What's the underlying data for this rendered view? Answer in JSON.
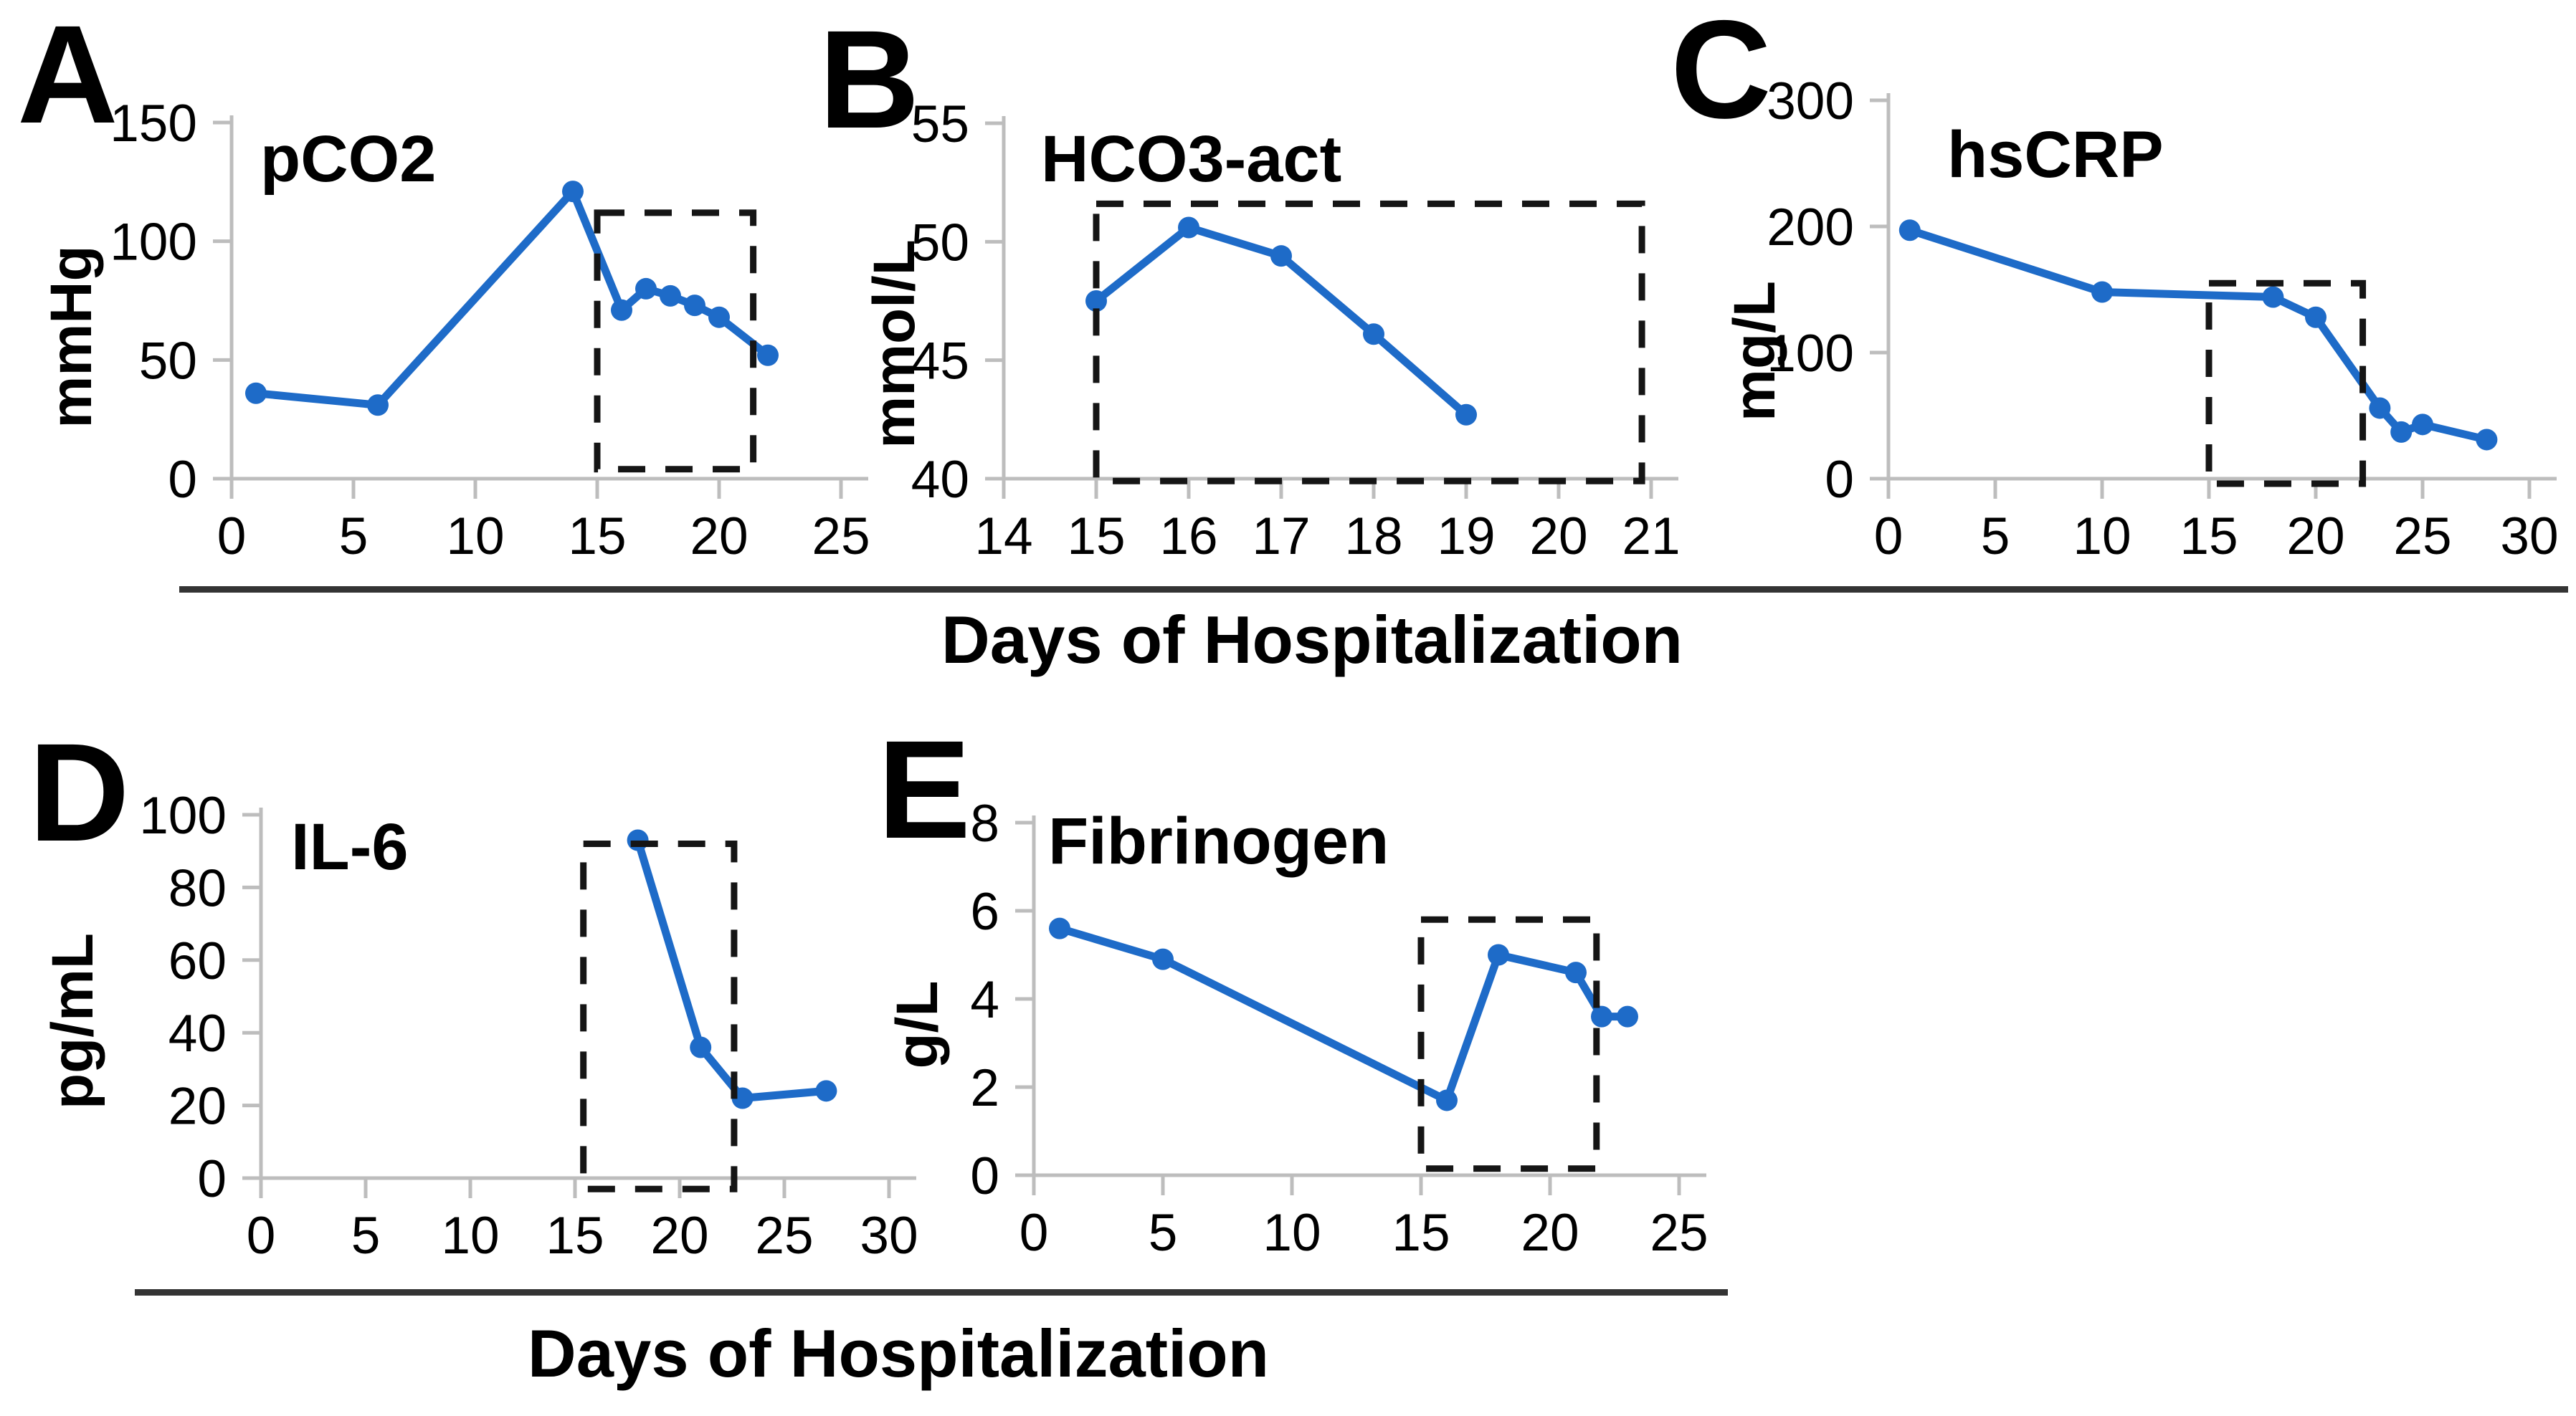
{
  "figure": {
    "caption_top": "Days of Hospitalization",
    "caption_bottom": "Days of Hospitalization"
  },
  "chart_data": [
    {
      "type": "line",
      "panel": "A",
      "title": "pCO2",
      "ylabel": "mmHg",
      "xlabel": "Days of Hospitalization",
      "xlim": [
        0,
        25
      ],
      "ylim": [
        0,
        150
      ],
      "x_ticks": [
        0,
        5,
        10,
        15,
        20,
        25
      ],
      "y_ticks": [
        0,
        50,
        100,
        150
      ],
      "x": [
        1,
        6,
        14,
        16,
        17,
        18,
        19,
        20,
        22
      ],
      "y": [
        36,
        31,
        121,
        71,
        80,
        77,
        73,
        68,
        52
      ],
      "dash_box": {
        "x0": 15,
        "x1": 21.4,
        "y0": 4,
        "y1": 112
      },
      "grid": false,
      "legend": "none"
    },
    {
      "type": "line",
      "panel": "B",
      "title": "HCO3-act",
      "ylabel": "mmol/L",
      "xlabel": "Days of Hospitalization",
      "xlim": [
        14,
        21
      ],
      "ylim": [
        40,
        55
      ],
      "x_ticks": [
        14,
        15,
        16,
        17,
        18,
        19,
        20,
        21
      ],
      "y_ticks": [
        40,
        45,
        50,
        55
      ],
      "x": [
        15,
        16,
        17,
        18,
        19
      ],
      "y": [
        47.5,
        50.6,
        49.4,
        46.1,
        42.7
      ],
      "dash_box": {
        "x0": 15,
        "x1": 20.9,
        "y0": 39.9,
        "y1": 51.6
      },
      "grid": false,
      "legend": "none"
    },
    {
      "type": "line",
      "panel": "C",
      "title": "hsCRP",
      "ylabel": "mg/L",
      "xlabel": "Days of Hospitalization",
      "xlim": [
        0,
        30
      ],
      "ylim": [
        0,
        300
      ],
      "x_ticks": [
        0,
        5,
        10,
        15,
        20,
        25,
        30
      ],
      "y_ticks": [
        0,
        100,
        200,
        300
      ],
      "x": [
        1,
        10,
        18,
        20,
        23,
        24,
        25,
        28
      ],
      "y": [
        197,
        148,
        144,
        128,
        56,
        37,
        43,
        31
      ],
      "dash_box": {
        "x0": 15,
        "x1": 22.2,
        "y0": -4,
        "y1": 155
      },
      "grid": false,
      "legend": "none"
    },
    {
      "type": "line",
      "panel": "D",
      "title": "IL-6",
      "ylabel": "pg/mL",
      "xlabel": "Days of Hospitalization",
      "xlim": [
        0,
        30
      ],
      "ylim": [
        0,
        100
      ],
      "x_ticks": [
        0,
        5,
        10,
        15,
        20,
        25,
        30
      ],
      "y_ticks": [
        0,
        20,
        40,
        60,
        80,
        100
      ],
      "x": [
        18,
        21,
        23,
        27
      ],
      "y": [
        93,
        36,
        22,
        24
      ],
      "dash_box": {
        "x0": 15.4,
        "x1": 22.6,
        "y0": -3,
        "y1": 92
      },
      "grid": false,
      "legend": "none"
    },
    {
      "type": "line",
      "panel": "E",
      "title": "Fibrinogen",
      "ylabel": "g/L",
      "xlabel": "Days of Hospitalization",
      "xlim": [
        0,
        25
      ],
      "ylim": [
        0,
        8
      ],
      "x_ticks": [
        0,
        5,
        10,
        15,
        20,
        25
      ],
      "y_ticks": [
        0,
        2,
        4,
        6,
        8
      ],
      "x": [
        1,
        5,
        16,
        18,
        21,
        22,
        23
      ],
      "y": [
        5.6,
        4.9,
        1.7,
        5.0,
        4.6,
        3.6,
        3.6
      ],
      "dash_box": {
        "x0": 15,
        "x1": 21.8,
        "y0": 0.15,
        "y1": 5.8
      },
      "grid": false,
      "legend": "none"
    }
  ]
}
